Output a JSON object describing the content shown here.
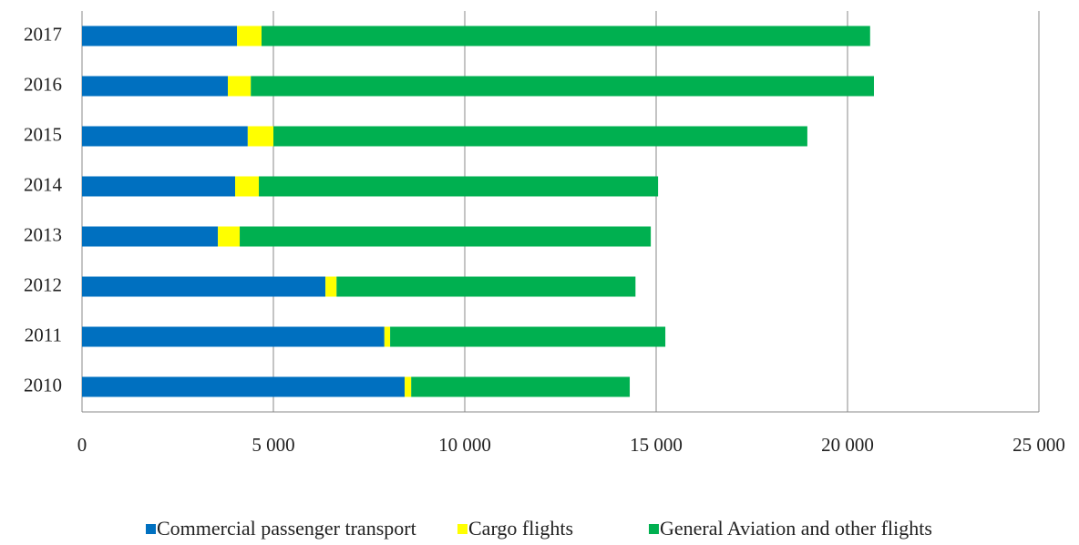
{
  "chart_data": {
    "type": "stacked_bar_horizontal",
    "categories": [
      "2010",
      "2011",
      "2012",
      "2013",
      "2014",
      "2015",
      "2016",
      "2017"
    ],
    "series": [
      {
        "name": "Commercial passenger transport",
        "color": "#0070c0",
        "values": [
          8430,
          7900,
          6360,
          3550,
          4000,
          4330,
          3810,
          4050
        ]
      },
      {
        "name": "Cargo flights",
        "color": "#ffff00",
        "values": [
          170,
          150,
          290,
          570,
          620,
          670,
          600,
          640
        ]
      },
      {
        "name": "General Aviation and other flights",
        "color": "#00b050",
        "values": [
          5710,
          7190,
          7810,
          10740,
          10430,
          13950,
          16280,
          15900
        ]
      }
    ],
    "xlim": [
      0,
      25000
    ],
    "xticks": [
      0,
      {
        "value": 5000,
        "label": "5 000"
      },
      {
        "value": 10000,
        "label": "10 000"
      },
      {
        "value": 15000,
        "label": "15 000"
      },
      {
        "value": 20000,
        "label": "20 000"
      },
      {
        "value": 25000,
        "label": "25 000"
      }
    ],
    "grid": true,
    "legend": "bottom"
  }
}
